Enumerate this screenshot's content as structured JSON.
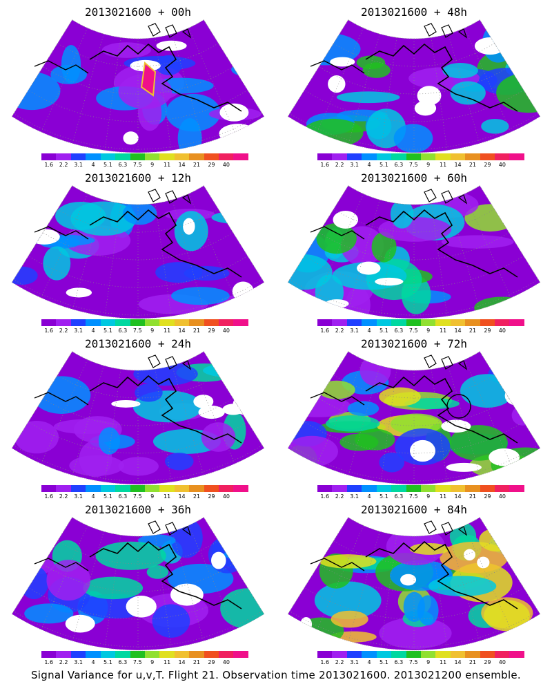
{
  "panels": [
    {
      "title": "2013021600 + 00h",
      "intensity": 0.1,
      "hotspot": true,
      "circle": false
    },
    {
      "title": "2013021600 + 48h",
      "intensity": 0.45,
      "hotspot": false,
      "circle": false
    },
    {
      "title": "2013021600 + 12h",
      "intensity": 0.2,
      "hotspot": false,
      "circle": false
    },
    {
      "title": "2013021600 + 60h",
      "intensity": 0.55,
      "hotspot": false,
      "circle": false
    },
    {
      "title": "2013021600 + 24h",
      "intensity": 0.28,
      "hotspot": false,
      "circle": false
    },
    {
      "title": "2013021600 + 72h",
      "intensity": 0.7,
      "hotspot": false,
      "circle": true
    },
    {
      "title": "2013021600 + 36h",
      "intensity": 0.35,
      "hotspot": false,
      "circle": false
    },
    {
      "title": "2013021600 + 84h",
      "intensity": 0.8,
      "hotspot": false,
      "circle": false
    }
  ],
  "colorbar": {
    "colors": [
      "#8a00d4",
      "#a020f0",
      "#2040ff",
      "#0090ff",
      "#00c8e0",
      "#00d8a0",
      "#20c020",
      "#90e030",
      "#e0e020",
      "#f0c030",
      "#e89020",
      "#f05020",
      "#f02060",
      "#f0108a"
    ],
    "labels": [
      "1.6",
      "2.2",
      "3.1",
      "4",
      "5.1",
      "6.3",
      "7.5",
      "9",
      "11",
      "14",
      "21",
      "29",
      "40"
    ]
  },
  "footer": "Signal Variance for u,v,T. Flight 21. Observation time 2013021600. 2013021200 ensemble."
}
